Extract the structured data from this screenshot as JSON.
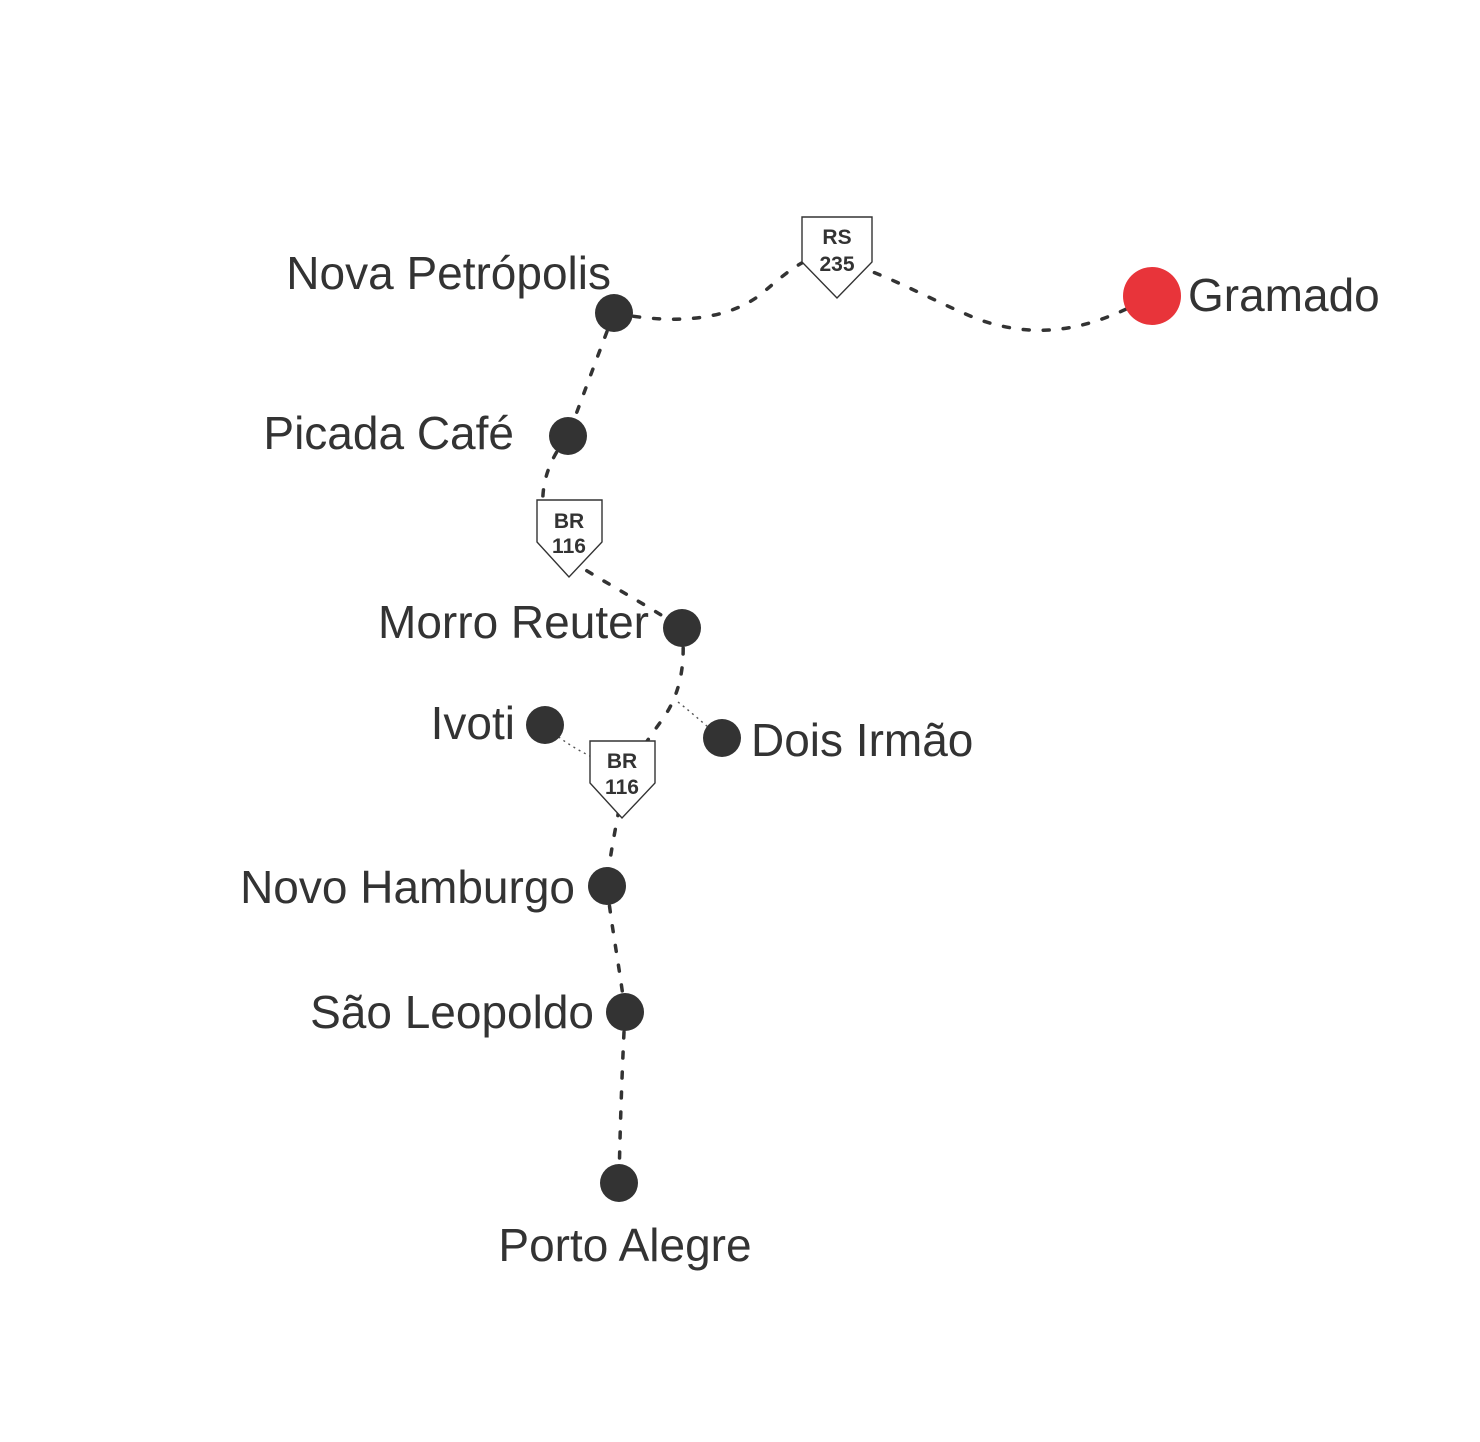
{
  "colors": {
    "city_dot": "#333333",
    "destination_dot": "#E8343A",
    "label": "#333333",
    "road": "#333333"
  },
  "cities": {
    "gramado": "Gramado",
    "nova_petropolis": "Nova Petrópolis",
    "picada_cafe": "Picada Café",
    "morro_reuter": "Morro Reuter",
    "ivoti": "Ivoti",
    "dois_irmao": "Dois Irmão",
    "novo_hamburgo": "Novo Hamburgo",
    "sao_leopoldo": "São Leopoldo",
    "porto_alegre": "Porto Alegre"
  },
  "shields": {
    "rs235": {
      "line1": "RS",
      "line2": "235"
    },
    "br116_upper": {
      "line1": "BR",
      "line2": "116"
    },
    "br116_lower": {
      "line1": "BR",
      "line2": "116"
    }
  }
}
